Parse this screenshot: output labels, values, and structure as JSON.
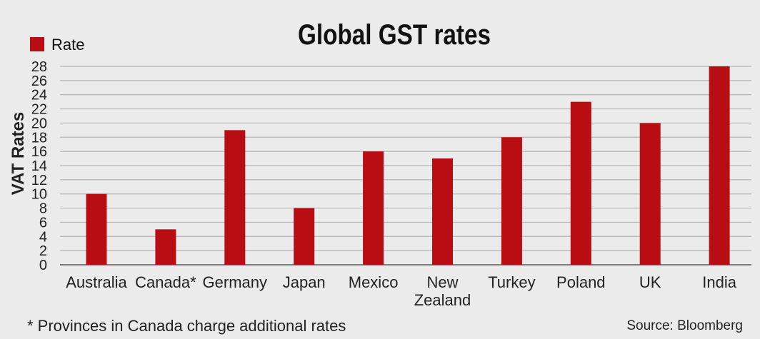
{
  "chart_data": {
    "type": "bar",
    "title": "Global GST rates",
    "ylabel": "VAT Rates",
    "xlabel": "",
    "ylim": [
      0,
      28
    ],
    "yticks": [
      0,
      2,
      4,
      6,
      8,
      10,
      12,
      14,
      16,
      18,
      20,
      22,
      24,
      26,
      28
    ],
    "categories": [
      "Australia",
      "Canada*",
      "Germany",
      "Japan",
      "Mexico",
      "New Zealand",
      "Turkey",
      "Poland",
      "UK",
      "India"
    ],
    "category_lines": [
      [
        "Australia"
      ],
      [
        "Canada*"
      ],
      [
        "Germany"
      ],
      [
        "Japan"
      ],
      [
        "Mexico"
      ],
      [
        "New",
        "Zealand"
      ],
      [
        "Turkey"
      ],
      [
        "Poland"
      ],
      [
        "UK"
      ],
      [
        "India"
      ]
    ],
    "series": [
      {
        "name": "Rate",
        "values": [
          10,
          5,
          19,
          8,
          16,
          15,
          18,
          23,
          20,
          28
        ]
      }
    ],
    "legend": "top-left",
    "grid": true,
    "footnote": "* Provinces in Canada charge additional rates",
    "source": "Source: Bloomberg",
    "colors": {
      "bar": "#b80d12",
      "grid": "#b5b5b5",
      "background": "#ebebeb",
      "axis": "#555555"
    }
  }
}
